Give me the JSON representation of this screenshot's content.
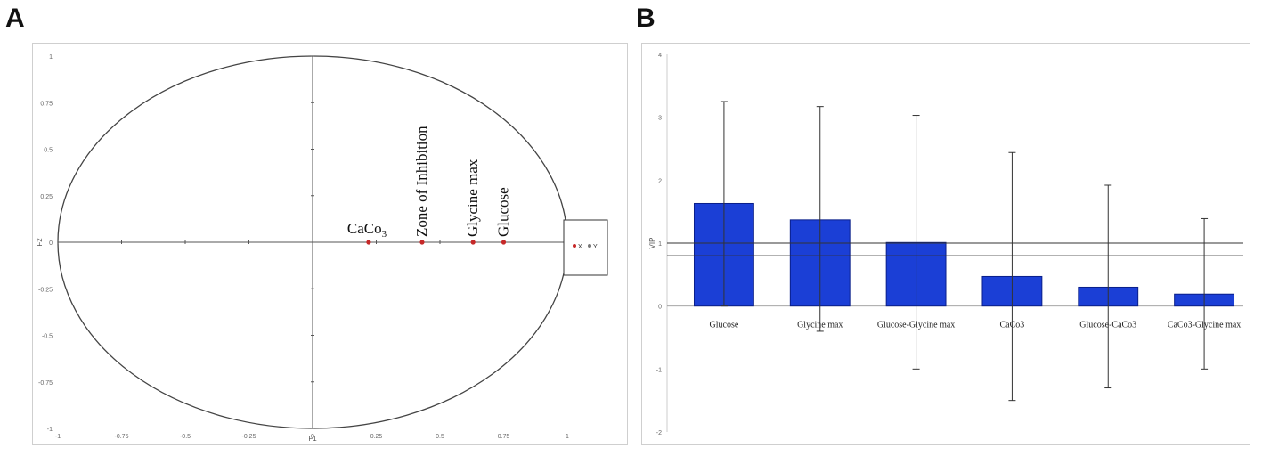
{
  "panels": {
    "a_label": "A",
    "b_label": "B"
  },
  "chart_data": [
    {
      "type": "scatter",
      "title": "",
      "xlabel": "F1",
      "ylabel": "F2",
      "xlim": [
        -1,
        1
      ],
      "ylim": [
        -1,
        1
      ],
      "x_ticks": [
        "-1",
        "-0.75",
        "-0.5",
        "-0.25",
        "0",
        "0.25",
        "0.5",
        "0.75",
        "1"
      ],
      "y_ticks": [
        "1",
        "0.75",
        "0.5",
        "0.25",
        "0",
        "-0.25",
        "-0.5",
        "-0.75",
        "-1"
      ],
      "grid": false,
      "legend": [
        "X",
        "Y"
      ],
      "legend_position": "right",
      "points": [
        {
          "label": "CaCo3",
          "label_main": "CaCo",
          "label_sub": "3",
          "x": 0.22,
          "y": 0.0,
          "orientation": "horizontal"
        },
        {
          "label": "Zone of Inhibition",
          "x": 0.43,
          "y": 0.0,
          "orientation": "vertical"
        },
        {
          "label": "Glycine max",
          "x": 0.63,
          "y": 0.0,
          "orientation": "vertical"
        },
        {
          "label": "Glucose",
          "x": 0.75,
          "y": 0.0,
          "orientation": "vertical"
        }
      ],
      "colors": {
        "point": "#c62828",
        "axis": "#555555",
        "circle": "#444444"
      }
    },
    {
      "type": "bar",
      "title": "",
      "xlabel": "",
      "ylabel": "VIP",
      "ylim": [
        -2,
        4
      ],
      "y_ticks": [
        "4",
        "3",
        "2",
        "1",
        "0",
        "-1",
        "-2"
      ],
      "categories": [
        "Glucose",
        "Glycine max",
        "Glucose-Glycine max",
        "CaCo3",
        "Glucose-CaCo3",
        "CaCo3-Glycine max"
      ],
      "values": [
        1.63,
        1.37,
        1.01,
        0.47,
        0.3,
        0.19
      ],
      "error_upper": [
        3.25,
        3.17,
        3.03,
        2.44,
        1.92,
        1.39
      ],
      "error_lower": [
        0.0,
        -0.4,
        -1.0,
        -1.5,
        -1.3,
        -1.0
      ],
      "reference_lines": [
        1.0,
        0.8
      ],
      "colors": {
        "bar": "#1b3fd6",
        "bar_edge": "#0a1f8a",
        "error": "#333333"
      }
    }
  ]
}
